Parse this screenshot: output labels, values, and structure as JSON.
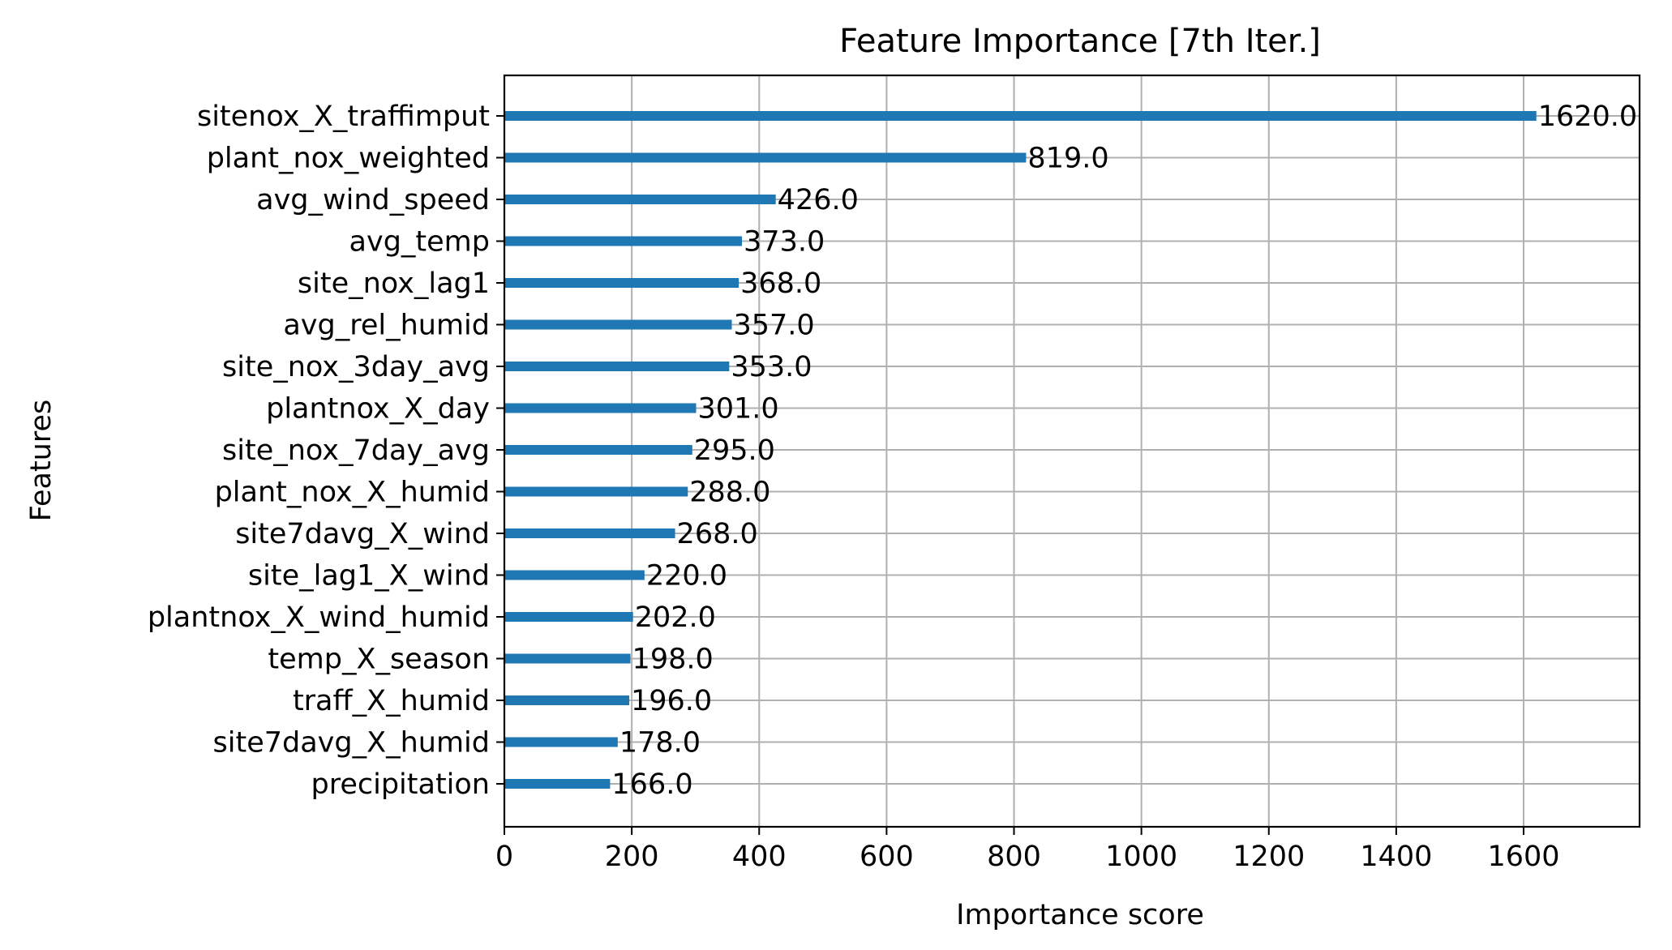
{
  "chart_data": {
    "type": "bar",
    "orientation": "horizontal",
    "title": "Feature Importance [7th Iter.]",
    "xlabel": "Importance score",
    "ylabel": "Features",
    "xlim": [
      0,
      1782
    ],
    "xticks": [
      0,
      200,
      400,
      600,
      800,
      1000,
      1200,
      1400,
      1600
    ],
    "grid": true,
    "bar_color": "#1f77b4",
    "categories": [
      "sitenox_X_traffimput",
      "plant_nox_weighted",
      "avg_wind_speed",
      "avg_temp",
      "site_nox_lag1",
      "avg_rel_humid",
      "site_nox_3day_avg",
      "plantnox_X_day",
      "site_nox_7day_avg",
      "plant_nox_X_humid",
      "site7davg_X_wind",
      "site_lag1_X_wind",
      "plantnox_X_wind_humid",
      "temp_X_season",
      "traff_X_humid",
      "site7davg_X_humid",
      "precipitation"
    ],
    "values": [
      1620,
      819,
      426,
      373,
      368,
      357,
      353,
      301,
      295,
      288,
      268,
      220,
      202,
      198,
      196,
      178,
      166
    ],
    "value_labels": [
      "1620.0",
      "819.0",
      "426.0",
      "373.0",
      "368.0",
      "357.0",
      "353.0",
      "301.0",
      "295.0",
      "288.0",
      "268.0",
      "220.0",
      "202.0",
      "198.0",
      "196.0",
      "178.0",
      "166.0"
    ]
  }
}
